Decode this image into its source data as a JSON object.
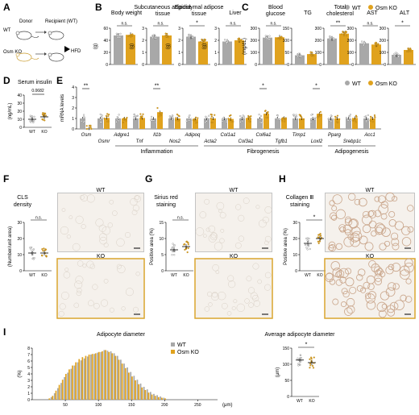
{
  "figure": {
    "colors": {
      "wt": "#a8a8a8",
      "ko": "#e0a21e",
      "frame_ko": "#d9a42c",
      "pale": "#f5f1ec"
    },
    "panelA": {
      "label": "A",
      "donor": "Donor",
      "recipient": "Recipient (WT)",
      "wt": "WT",
      "ko": "Osm KO",
      "hfd": "HFD"
    },
    "legend": {
      "wt": "WT",
      "ko": "Osm KO"
    }
  },
  "chart_data": [
    {
      "panel": "B",
      "type": "bar",
      "subplots": [
        {
          "title": "Body weight",
          "ylabel": "(g)",
          "ylim": [
            0,
            60
          ],
          "ticks": [
            0,
            20,
            40,
            60
          ],
          "wt": 48,
          "ko": 49,
          "sig": "n.s."
        },
        {
          "title": "Subcutaneous adipose tissue",
          "ylabel": "(g)",
          "ylim": [
            0,
            3
          ],
          "ticks": [
            0,
            1,
            2,
            3
          ],
          "wt": 2.3,
          "ko": 2.4,
          "sig": "n.s."
        },
        {
          "title": "Epididymal adipose tissue",
          "ylabel": "(g)",
          "ylim": [
            0,
            3
          ],
          "ticks": [
            0,
            1,
            2,
            3
          ],
          "wt": 2.3,
          "ko": 1.9,
          "sig": "*"
        },
        {
          "title": "Liver",
          "ylabel": "(g)",
          "ylim": [
            0,
            3
          ],
          "ticks": [
            0,
            1,
            2,
            3
          ],
          "wt": 1.9,
          "ko": 2.0,
          "sig": "n.s."
        }
      ]
    },
    {
      "panel": "C",
      "type": "bar",
      "subplots": [
        {
          "title": "Blood glucose",
          "ylabel": "(mg/dL)",
          "ylim": [
            0,
            300
          ],
          "ticks": [
            0,
            100,
            200,
            300
          ],
          "wt": 222,
          "ko": 225,
          "sig": "n.s."
        },
        {
          "title": "TG",
          "ylabel": "",
          "ylim": [
            0,
            150
          ],
          "ticks": [
            0,
            50,
            100,
            150
          ],
          "wt": 38,
          "ko": 43,
          "sig": ""
        },
        {
          "title": "Total cholesterol",
          "ylabel": "",
          "ylim": [
            0,
            300
          ],
          "ticks": [
            0,
            100,
            200,
            300
          ],
          "wt": 215,
          "ko": 255,
          "sig": "**"
        },
        {
          "title": "AST",
          "ylabel": "",
          "ylim": [
            0,
            300
          ],
          "ticks": [
            0,
            100,
            200,
            300
          ],
          "wt": 175,
          "ko": 165,
          "sig": "n.s."
        },
        {
          "title": "ALT",
          "ylabel": "",
          "ylim": [
            0,
            300
          ],
          "ticks": [
            0,
            100,
            200,
            300
          ],
          "wt": 80,
          "ko": 120,
          "sig": "*"
        }
      ]
    },
    {
      "panel": "D",
      "type": "scatter",
      "title": "Serum insulin",
      "ylabel": "(ng/mL)",
      "ylim": [
        0,
        40
      ],
      "ticks": [
        0,
        10,
        20,
        30,
        40
      ],
      "categories": [
        "WT",
        "KO"
      ],
      "wt": 10,
      "ko": 13,
      "pvalue": "0.0682"
    },
    {
      "panel": "E",
      "type": "bar",
      "ylabel": "mRNA levels",
      "ylim": [
        0,
        4
      ],
      "ticks": [
        0,
        1,
        2,
        3,
        4
      ],
      "genes": [
        "Osm",
        "Osmr",
        "Adgre1",
        "Tnf",
        "Il1b",
        "Nos2",
        "Adipoq",
        "Acta2",
        "Col1a1",
        "Col3a1",
        "Col6a1",
        "Tgfb1",
        "Timp1",
        "Loxl2",
        "Pparg",
        "Srebp1c",
        "Acc1"
      ],
      "wt": [
        1,
        1,
        1,
        1,
        1,
        1,
        1,
        1,
        1,
        1,
        1,
        1,
        1,
        1,
        1,
        1,
        1
      ],
      "ko": [
        0.05,
        1.05,
        1.0,
        1.05,
        1.6,
        1.0,
        0.95,
        1.0,
        0.95,
        1.05,
        1.45,
        1.05,
        1.0,
        1.45,
        1.0,
        1.05,
        1.0
      ],
      "sig": [
        {
          "gene": "Osm",
          "mark": "**"
        },
        {
          "gene": "Il1b",
          "mark": "**"
        },
        {
          "gene": "Col6a1",
          "mark": "*"
        },
        {
          "gene": "Loxl2",
          "mark": "*"
        }
      ],
      "groups": [
        {
          "label": "Inflammation",
          "from": "Adgre1",
          "to": "Adipoq"
        },
        {
          "label": "Fibrogenesis",
          "from": "Acta2",
          "to": "Loxl2"
        },
        {
          "label": "Adipogenesis",
          "from": "Pparg",
          "to": "Acc1"
        }
      ],
      "legend": [
        "WT",
        "Osm KO"
      ]
    },
    {
      "panel": "F",
      "type": "scatter",
      "title": "CLS density",
      "ylabel": "(Number/unit area)",
      "ylim": [
        0,
        30
      ],
      "ticks": [
        0,
        10,
        20,
        30
      ],
      "categories": [
        "WT",
        "KO"
      ],
      "wt": 11,
      "ko": 11,
      "sig": "n.s.",
      "images": [
        "WT",
        "KO"
      ]
    },
    {
      "panel": "G",
      "type": "scatter",
      "title": "Sirius red staining",
      "ylabel": "Positive area (%)",
      "ylim": [
        0,
        15
      ],
      "ticks": [
        0,
        5,
        10,
        15
      ],
      "categories": [
        "WT",
        "KO"
      ],
      "wt": 6.5,
      "ko": 7.5,
      "sig": "n.s.",
      "images": [
        "WT",
        "KO"
      ]
    },
    {
      "panel": "H",
      "type": "scatter",
      "title": "Collagen Ⅲ staining",
      "ylabel": "Positive area (%)",
      "ylim": [
        0,
        30
      ],
      "ticks": [
        0,
        10,
        20,
        30
      ],
      "categories": [
        "WT",
        "KO"
      ],
      "wt": 17,
      "ko": 20,
      "sig": "*",
      "images": [
        "WT",
        "KO"
      ]
    },
    {
      "panel": "I",
      "type": "bar",
      "title": "Adipocyte diameter",
      "ylabel": "(%)",
      "xlabel": "(μm)",
      "ylim": [
        0,
        8
      ],
      "ticks": [
        0,
        1,
        2,
        3,
        4,
        5,
        6,
        7,
        8
      ],
      "xticks": [
        50,
        100,
        150,
        200,
        250
      ],
      "bin_start": 25,
      "bin_width": 5,
      "wt": [
        0.1,
        0.4,
        1.0,
        1.8,
        2.6,
        3.5,
        4.2,
        4.8,
        5.3,
        5.8,
        6.1,
        6.4,
        6.7,
        7.0,
        7.1,
        7.3,
        7.4,
        7.7,
        7.6,
        7.5,
        7.2,
        6.8,
        6.2,
        5.6,
        5.0,
        4.3,
        3.7,
        3.1,
        2.5,
        2.0,
        1.6,
        1.2,
        0.9,
        0.7,
        0.5,
        0.3
      ],
      "ko": [
        0.2,
        0.6,
        1.4,
        2.3,
        3.1,
        4.0,
        4.7,
        5.3,
        5.8,
        6.3,
        6.6,
        6.8,
        7.0,
        7.1,
        7.2,
        7.4,
        7.5,
        7.7,
        7.4,
        7.2,
        6.8,
        6.2,
        5.6,
        4.9,
        4.2,
        3.6,
        3.0,
        2.4,
        1.9,
        1.5,
        1.1,
        0.8,
        0.6,
        0.4,
        0.3,
        0.2
      ],
      "legend": [
        "WT",
        "Osm KO"
      ]
    },
    {
      "panel": "I2",
      "type": "scatter",
      "title": "Average adipocyte diameter",
      "ylabel": "(μm)",
      "ylim": [
        0,
        150
      ],
      "ticks": [
        0,
        50,
        100,
        150
      ],
      "categories": [
        "WT",
        "KO"
      ],
      "wt": 113,
      "ko": 105,
      "sig": "*"
    }
  ]
}
